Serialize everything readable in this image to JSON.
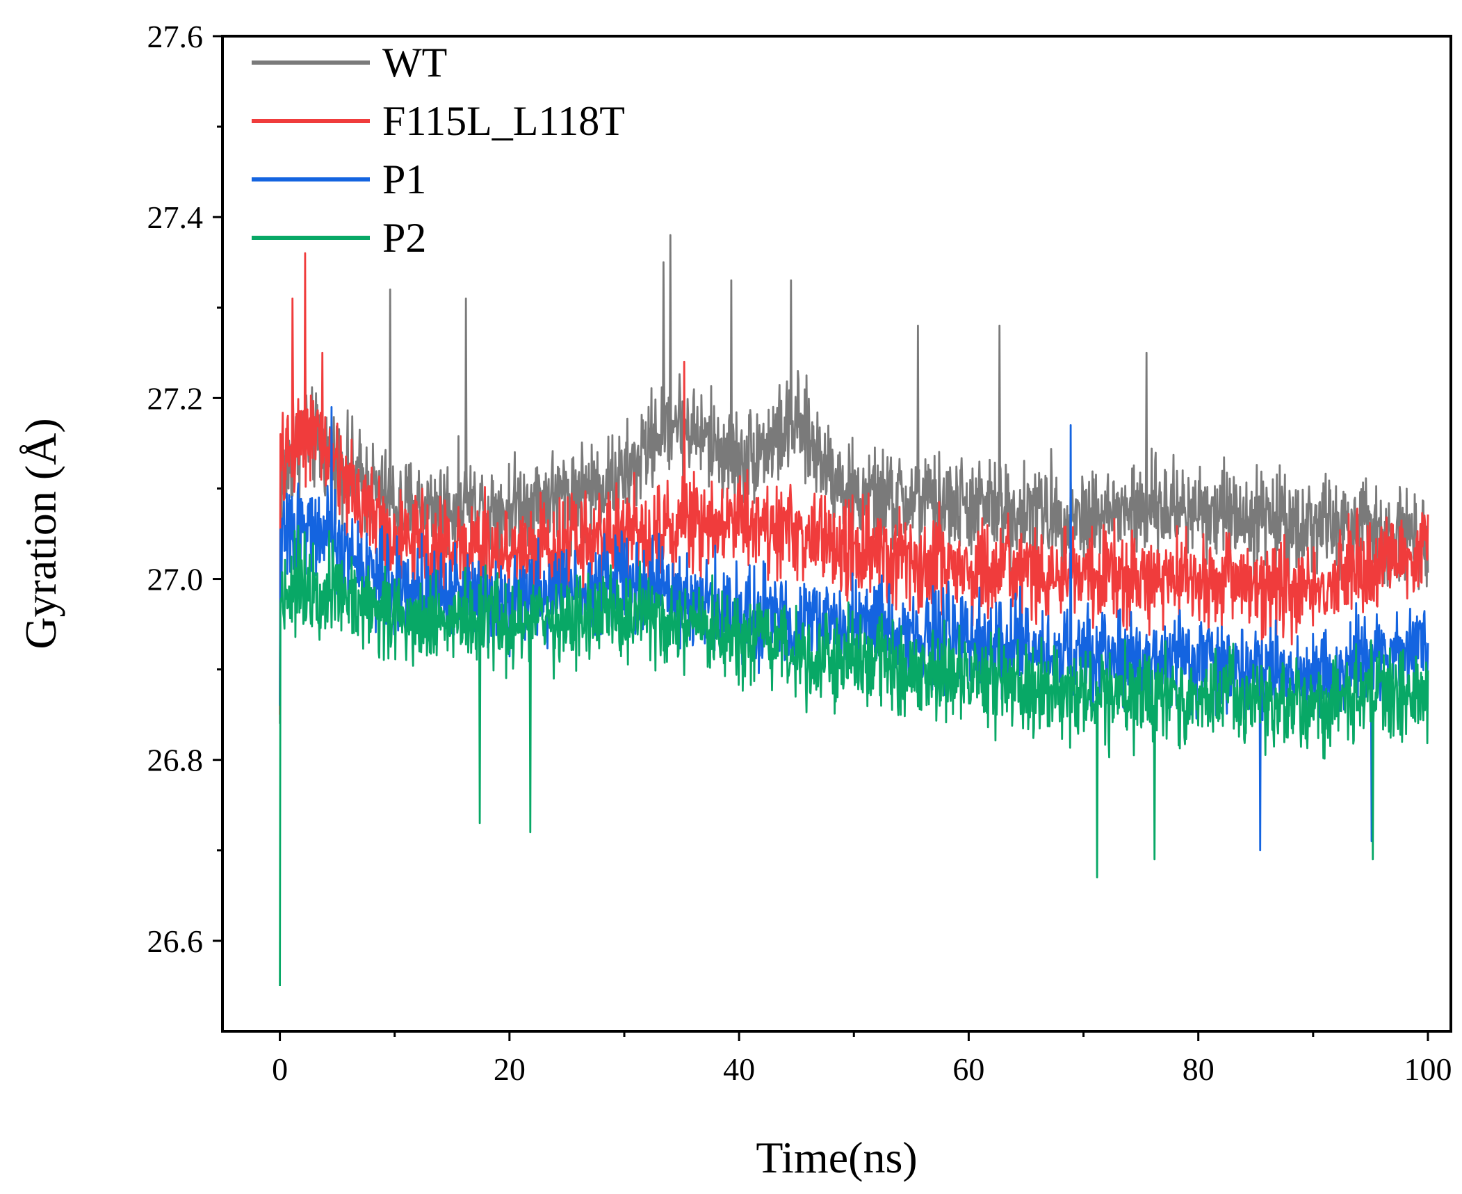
{
  "chart_data": {
    "type": "line",
    "title": "",
    "xlabel": "Time(ns)",
    "ylabel": "Gyration (Å)",
    "xlim": [
      -5,
      102
    ],
    "ylim": [
      26.5,
      27.6
    ],
    "x_major_ticks": [
      0,
      20,
      40,
      60,
      80,
      100
    ],
    "x_tick_labels": [
      "0",
      "20",
      "40",
      "60",
      "80",
      "100"
    ],
    "x_minor_step": 10,
    "y_major_ticks": [
      26.6,
      26.8,
      27.0,
      27.2,
      27.4,
      27.6
    ],
    "y_tick_labels": [
      "26.6",
      "26.8",
      "27.0",
      "27.2",
      "27.4",
      "27.6"
    ],
    "y_minor_step": 0.1,
    "grid": false,
    "legend_position": "top-left",
    "samples_per_series": 2000,
    "series": [
      {
        "name": "WT",
        "color": "#7a7a7a",
        "start": 26.84,
        "trend_x": [
          0,
          2,
          10,
          20,
          30,
          34,
          40,
          45,
          50,
          60,
          70,
          80,
          90,
          100
        ],
        "trend_y": [
          27.1,
          27.16,
          27.08,
          27.08,
          27.11,
          27.18,
          27.13,
          27.17,
          27.09,
          27.08,
          27.07,
          27.08,
          27.06,
          27.05
        ],
        "noise": 0.08,
        "spikes_x": [
          2.2,
          9.6,
          16.2,
          33.4,
          34,
          39.3,
          44.5,
          55.6,
          62.7,
          75.5
        ],
        "spikes_y": [
          27.28,
          27.32,
          27.31,
          27.35,
          27.38,
          27.33,
          27.33,
          27.28,
          27.28,
          27.25
        ]
      },
      {
        "name": "F115L_L118T",
        "color": "#f03c3c",
        "start": 26.85,
        "trend_x": [
          0,
          2,
          10,
          20,
          30,
          40,
          50,
          60,
          70,
          80,
          90,
          100
        ],
        "trend_y": [
          27.12,
          27.17,
          27.04,
          27.03,
          27.05,
          27.07,
          27.03,
          27.01,
          27.0,
          27.0,
          26.99,
          27.04
        ],
        "noise": 0.08,
        "spikes_x": [
          1.1,
          2.2,
          3.7,
          35.2
        ],
        "spikes_y": [
          27.31,
          27.36,
          27.25,
          27.24
        ]
      },
      {
        "name": "P1",
        "color": "#1464e0",
        "start": 26.86,
        "trend_x": [
          0,
          2,
          10,
          20,
          30,
          40,
          50,
          60,
          70,
          80,
          90,
          100
        ],
        "trend_y": [
          27.04,
          27.06,
          26.99,
          26.98,
          27.0,
          26.96,
          26.95,
          26.93,
          26.91,
          26.91,
          26.89,
          26.93
        ],
        "noise": 0.075,
        "spikes_x": [
          4.5,
          68.9,
          85.4,
          95.1
        ],
        "spikes_y": [
          27.19,
          27.17,
          26.7,
          26.71
        ]
      },
      {
        "name": "P2",
        "color": "#08a866",
        "start": 26.55,
        "trend_x": [
          0,
          2,
          10,
          20,
          30,
          40,
          50,
          60,
          70,
          80,
          90,
          100
        ],
        "trend_y": [
          26.98,
          27.0,
          26.96,
          26.95,
          26.96,
          26.93,
          26.91,
          26.89,
          26.87,
          26.87,
          26.86,
          26.88
        ],
        "noise": 0.075,
        "spikes_x": [
          17.4,
          21.8,
          71.2,
          76.2,
          95.2
        ],
        "spikes_y": [
          26.73,
          26.72,
          26.67,
          26.69,
          26.69
        ]
      }
    ]
  }
}
